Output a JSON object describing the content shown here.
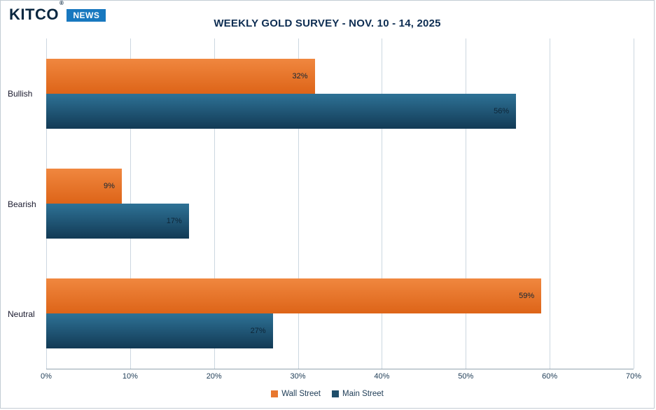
{
  "header": {
    "logo": {
      "kitco": "KITCO",
      "registered": "®",
      "news": "NEWS"
    },
    "title": "WEEKLY GOLD SURVEY - NOV. 10 - 14, 2025"
  },
  "chart_data": {
    "type": "bar",
    "orientation": "horizontal",
    "title": "WEEKLY GOLD SURVEY - NOV. 10 - 14, 2025",
    "categories": [
      "Bullish",
      "Bearish",
      "Neutral"
    ],
    "series": [
      {
        "name": "Wall Street",
        "color": "#e8772e",
        "gradient": [
          "#f0873f",
          "#dd6418"
        ],
        "values": [
          32,
          9,
          59
        ]
      },
      {
        "name": "Main Street",
        "color": "#1f4e6a",
        "gradient": [
          "#2e7296",
          "#123a55"
        ],
        "values": [
          56,
          17,
          27
        ]
      }
    ],
    "value_suffix": "%",
    "xlim": [
      0,
      70
    ],
    "x_ticks": [
      "0%",
      "10%",
      "20%",
      "30%",
      "40%",
      "50%",
      "60%",
      "70%"
    ],
    "grid": true,
    "legend_position": "bottom",
    "colors": {
      "title_text": "#0d2d52",
      "gridline": "#ccd7e0",
      "axis_line": "#93a3af",
      "label_text": "#1d3b55",
      "news_box": "#1878bf"
    }
  }
}
